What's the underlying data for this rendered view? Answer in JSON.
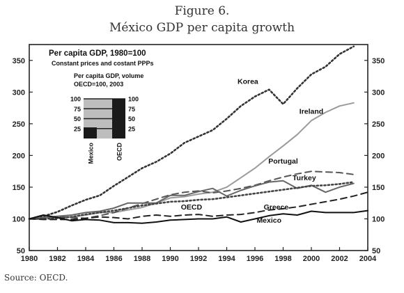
{
  "figure": {
    "number": "Figure 6.",
    "subtitle": "México GDP per capita growth",
    "source": "Source: OECD."
  },
  "chart_data": {
    "type": "line",
    "title": "Per capita GDP, 1980=100",
    "subtitle": "Constant prices and costant PPPs",
    "xlim": [
      1980,
      2004
    ],
    "ylim": [
      50,
      375
    ],
    "x_ticks": [
      1980,
      1982,
      1984,
      1986,
      1988,
      1990,
      1992,
      1994,
      1996,
      1998,
      2000,
      2002,
      2004
    ],
    "y_ticks": [
      50,
      100,
      150,
      200,
      250,
      300,
      350
    ],
    "series": [
      {
        "name": "Korea",
        "style": "dotted",
        "color": "#333333",
        "label_at": [
          1995.5,
          313
        ],
        "x": [
          1980,
          1981,
          1982,
          1983,
          1984,
          1985,
          1986,
          1987,
          1988,
          1989,
          1990,
          1991,
          1992,
          1993,
          1994,
          1995,
          1996,
          1997,
          1998,
          1999,
          2000,
          2001,
          2002,
          2003
        ],
        "y": [
          100,
          104,
          111,
          121,
          130,
          137,
          152,
          166,
          180,
          190,
          203,
          220,
          230,
          240,
          258,
          278,
          293,
          304,
          281,
          306,
          328,
          340,
          360,
          372
        ]
      },
      {
        "name": "Ireland",
        "style": "solid",
        "color": "#9a9a9a",
        "label_at": [
          2000,
          266
        ],
        "x": [
          1980,
          1981,
          1982,
          1983,
          1984,
          1985,
          1986,
          1987,
          1988,
          1989,
          1990,
          1991,
          1992,
          1993,
          1994,
          1995,
          1996,
          1997,
          1998,
          1999,
          2000,
          2001,
          2002,
          2003
        ],
        "y": [
          100,
          102,
          103,
          103,
          106,
          110,
          110,
          114,
          118,
          125,
          133,
          135,
          139,
          142,
          150,
          165,
          180,
          198,
          215,
          233,
          255,
          268,
          278,
          283
        ]
      },
      {
        "name": "Portugal",
        "style": "dashed",
        "color": "#555555",
        "label_at": [
          1998,
          187
        ],
        "x": [
          1980,
          1981,
          1982,
          1983,
          1984,
          1985,
          1986,
          1987,
          1988,
          1989,
          1990,
          1991,
          1992,
          1993,
          1994,
          1995,
          1996,
          1997,
          1998,
          1999,
          2000,
          2001,
          2002,
          2003
        ],
        "y": [
          100,
          101,
          103,
          102,
          101,
          105,
          110,
          117,
          124,
          131,
          138,
          142,
          144,
          141,
          144,
          148,
          153,
          160,
          166,
          171,
          175,
          174,
          173,
          170
        ]
      },
      {
        "name": "Turkey",
        "style": "solid",
        "color": "#666666",
        "label_at": [
          1999.5,
          161
        ],
        "x": [
          1980,
          1981,
          1982,
          1983,
          1984,
          1985,
          1986,
          1987,
          1988,
          1989,
          1990,
          1991,
          1992,
          1993,
          1994,
          1995,
          1996,
          1997,
          1998,
          1999,
          2000,
          2001,
          2002,
          2003
        ],
        "y": [
          100,
          102,
          104,
          106,
          110,
          112,
          117,
          125,
          125,
          125,
          137,
          137,
          143,
          148,
          136,
          145,
          152,
          158,
          160,
          148,
          153,
          142,
          150,
          156
        ]
      },
      {
        "name": "OECD",
        "style": "dotted",
        "color": "#444444",
        "label_at": [
          1991.5,
          115
        ],
        "x": [
          1980,
          1981,
          1982,
          1983,
          1984,
          1985,
          1986,
          1987,
          1988,
          1989,
          1990,
          1991,
          1992,
          1993,
          1994,
          1995,
          1996,
          1997,
          1998,
          1999,
          2000,
          2001,
          2002,
          2003
        ],
        "y": [
          100,
          100,
          101,
          103,
          107,
          110,
          113,
          117,
          121,
          124,
          127,
          128,
          130,
          131,
          134,
          137,
          140,
          143,
          146,
          149,
          152,
          153,
          155,
          158
        ]
      },
      {
        "name": "Greece",
        "style": "dashed",
        "color": "#222222",
        "label_at": [
          1997.5,
          115
        ],
        "x": [
          1980,
          1981,
          1982,
          1983,
          1984,
          1985,
          1986,
          1987,
          1988,
          1989,
          1990,
          1991,
          1992,
          1993,
          1994,
          1995,
          1996,
          1997,
          1998,
          1999,
          2000,
          2001,
          2002,
          2003,
          2004
        ],
        "y": [
          100,
          99,
          99,
          99,
          101,
          103,
          102,
          100,
          104,
          106,
          104,
          106,
          107,
          104,
          106,
          107,
          110,
          114,
          116,
          119,
          123,
          127,
          131,
          136,
          142
        ]
      },
      {
        "name": "Mexico",
        "style": "solid",
        "color": "#111111",
        "label_at": [
          1997,
          94
        ],
        "x": [
          1980,
          1981,
          1982,
          1983,
          1984,
          1985,
          1986,
          1987,
          1988,
          1989,
          1990,
          1991,
          1992,
          1993,
          1994,
          1995,
          1996,
          1997,
          1998,
          1999,
          2000,
          2001,
          2002,
          2003,
          2004
        ],
        "y": [
          100,
          106,
          102,
          97,
          99,
          98,
          94,
          94,
          93,
          95,
          98,
          99,
          100,
          100,
          103,
          95,
          100,
          105,
          108,
          106,
          112,
          110,
          110,
          110,
          113
        ]
      }
    ],
    "inset": {
      "title": "Per capita GDP, volume",
      "subtitle": "OECD=100, 2003",
      "ticks": [
        100,
        75,
        50,
        25
      ],
      "bars": [
        {
          "name": "Mexico",
          "value": 28
        },
        {
          "name": "OECD",
          "value": 100
        }
      ]
    }
  }
}
